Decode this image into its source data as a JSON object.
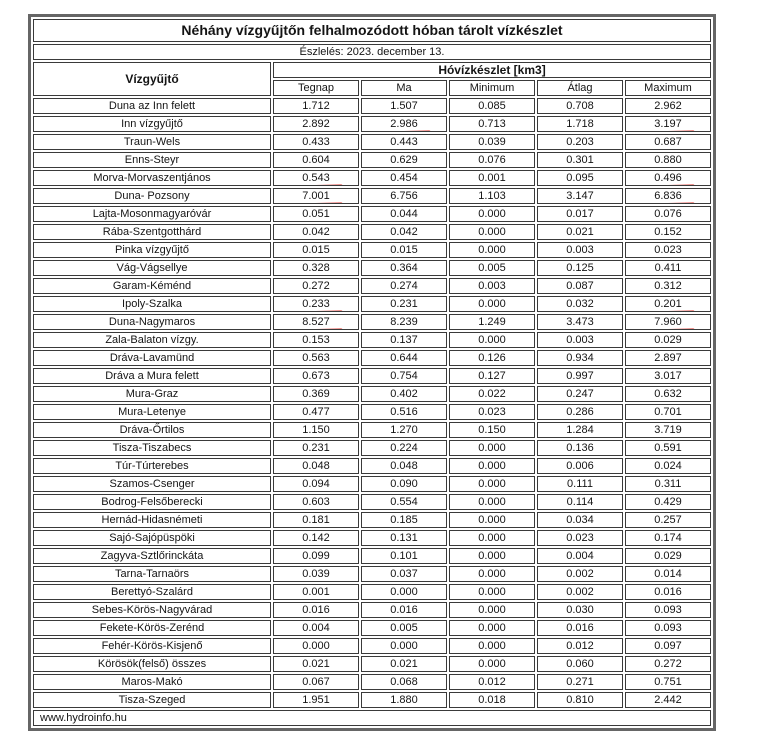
{
  "page": {
    "title": "Néhány vízgyűjtőn felhalmozódott hóban tárolt vízkészlet",
    "subtitle": "Észlelés: 2023. december 13.",
    "footer_link": "www.hydroinfo.hu"
  },
  "table": {
    "catchment_header": "Vízgyűjtő",
    "group_header": "Hóvízkészlet [km3]",
    "columns": [
      "Tegnap",
      "Ma",
      "Minimum",
      "Átlag",
      "Maximum"
    ],
    "annotation_color": "#df201a",
    "rows": [
      {
        "name": "Duna az Inn felett",
        "values": [
          "1.712",
          "1.507",
          "0.085",
          "0.708",
          "2.962"
        ],
        "marks": []
      },
      {
        "name": "Inn vízgyűjtő",
        "values": [
          "2.892",
          "2.986",
          "0.713",
          "1.718",
          "3.197"
        ],
        "marks": [
          1,
          4
        ]
      },
      {
        "name": "Traun-Wels",
        "values": [
          "0.433",
          "0.443",
          "0.039",
          "0.203",
          "0.687"
        ],
        "marks": []
      },
      {
        "name": "Enns-Steyr",
        "values": [
          "0.604",
          "0.629",
          "0.076",
          "0.301",
          "0.880"
        ],
        "marks": []
      },
      {
        "name": "Morva-Morvaszentjános",
        "values": [
          "0.543",
          "0.454",
          "0.001",
          "0.095",
          "0.496"
        ],
        "marks": [
          0,
          4
        ]
      },
      {
        "name": "Duna- Pozsony",
        "values": [
          "7.001",
          "6.756",
          "1.103",
          "3.147",
          "6.836"
        ],
        "marks": [
          0,
          4
        ]
      },
      {
        "name": "Lajta-Mosonmagyaróvár",
        "values": [
          "0.051",
          "0.044",
          "0.000",
          "0.017",
          "0.076"
        ],
        "marks": []
      },
      {
        "name": "Rába-Szentgotthárd",
        "values": [
          "0.042",
          "0.042",
          "0.000",
          "0.021",
          "0.152"
        ],
        "marks": []
      },
      {
        "name": "Pinka vízgyűjtő",
        "values": [
          "0.015",
          "0.015",
          "0.000",
          "0.003",
          "0.023"
        ],
        "marks": []
      },
      {
        "name": "Vág-Vágsellye",
        "values": [
          "0.328",
          "0.364",
          "0.005",
          "0.125",
          "0.411"
        ],
        "marks": []
      },
      {
        "name": "Garam-Kéménd",
        "values": [
          "0.272",
          "0.274",
          "0.003",
          "0.087",
          "0.312"
        ],
        "marks": []
      },
      {
        "name": "Ipoly-Szalka",
        "values": [
          "0.233",
          "0.231",
          "0.000",
          "0.032",
          "0.201"
        ],
        "marks": [
          0,
          4
        ]
      },
      {
        "name": "Duna-Nagymaros",
        "values": [
          "8.527",
          "8.239",
          "1.249",
          "3.473",
          "7.960"
        ],
        "marks": [
          0,
          4
        ]
      },
      {
        "name": "Zala-Balaton vízgy.",
        "values": [
          "0.153",
          "0.137",
          "0.000",
          "0.003",
          "0.029"
        ],
        "marks": []
      },
      {
        "name": "Dráva-Lavamünd",
        "values": [
          "0.563",
          "0.644",
          "0.126",
          "0.934",
          "2.897"
        ],
        "marks": []
      },
      {
        "name": "Dráva a Mura felett",
        "values": [
          "0.673",
          "0.754",
          "0.127",
          "0.997",
          "3.017"
        ],
        "marks": []
      },
      {
        "name": "Mura-Graz",
        "values": [
          "0.369",
          "0.402",
          "0.022",
          "0.247",
          "0.632"
        ],
        "marks": []
      },
      {
        "name": "Mura-Letenye",
        "values": [
          "0.477",
          "0.516",
          "0.023",
          "0.286",
          "0.701"
        ],
        "marks": []
      },
      {
        "name": "Dráva-Őrtilos",
        "values": [
          "1.150",
          "1.270",
          "0.150",
          "1.284",
          "3.719"
        ],
        "marks": []
      },
      {
        "name": "Tisza-Tiszabecs",
        "values": [
          "0.231",
          "0.224",
          "0.000",
          "0.136",
          "0.591"
        ],
        "marks": []
      },
      {
        "name": "Túr-Túrterebes",
        "values": [
          "0.048",
          "0.048",
          "0.000",
          "0.006",
          "0.024"
        ],
        "marks": []
      },
      {
        "name": "Szamos-Csenger",
        "values": [
          "0.094",
          "0.090",
          "0.000",
          "0.111",
          "0.311"
        ],
        "marks": []
      },
      {
        "name": "Bodrog-Felsőberecki",
        "values": [
          "0.603",
          "0.554",
          "0.000",
          "0.114",
          "0.429"
        ],
        "marks": []
      },
      {
        "name": "Hernád-Hidasnémeti",
        "values": [
          "0.181",
          "0.185",
          "0.000",
          "0.034",
          "0.257"
        ],
        "marks": []
      },
      {
        "name": "Sajó-Sajópüspöki",
        "values": [
          "0.142",
          "0.131",
          "0.000",
          "0.023",
          "0.174"
        ],
        "marks": []
      },
      {
        "name": "Zagyva-Sztlőrinckáta",
        "values": [
          "0.099",
          "0.101",
          "0.000",
          "0.004",
          "0.029"
        ],
        "marks": []
      },
      {
        "name": "Tarna-Tarnaörs",
        "values": [
          "0.039",
          "0.037",
          "0.000",
          "0.002",
          "0.014"
        ],
        "marks": []
      },
      {
        "name": "Berettyó-Szalárd",
        "values": [
          "0.001",
          "0.000",
          "0.000",
          "0.002",
          "0.016"
        ],
        "marks": []
      },
      {
        "name": "Sebes-Körös-Nagyvárad",
        "values": [
          "0.016",
          "0.016",
          "0.000",
          "0.030",
          "0.093"
        ],
        "marks": []
      },
      {
        "name": "Fekete-Körös-Zerénd",
        "values": [
          "0.004",
          "0.005",
          "0.000",
          "0.016",
          "0.093"
        ],
        "marks": []
      },
      {
        "name": "Fehér-Körös-Kisjenő",
        "values": [
          "0.000",
          "0.000",
          "0.000",
          "0.012",
          "0.097"
        ],
        "marks": []
      },
      {
        "name": "Körösök(felső) összes",
        "values": [
          "0.021",
          "0.021",
          "0.000",
          "0.060",
          "0.272"
        ],
        "marks": []
      },
      {
        "name": "Maros-Makó",
        "values": [
          "0.067",
          "0.068",
          "0.012",
          "0.271",
          "0.751"
        ],
        "marks": []
      },
      {
        "name": "Tisza-Szeged",
        "values": [
          "1.951",
          "1.880",
          "0.018",
          "0.810",
          "2.442"
        ],
        "marks": []
      }
    ]
  }
}
